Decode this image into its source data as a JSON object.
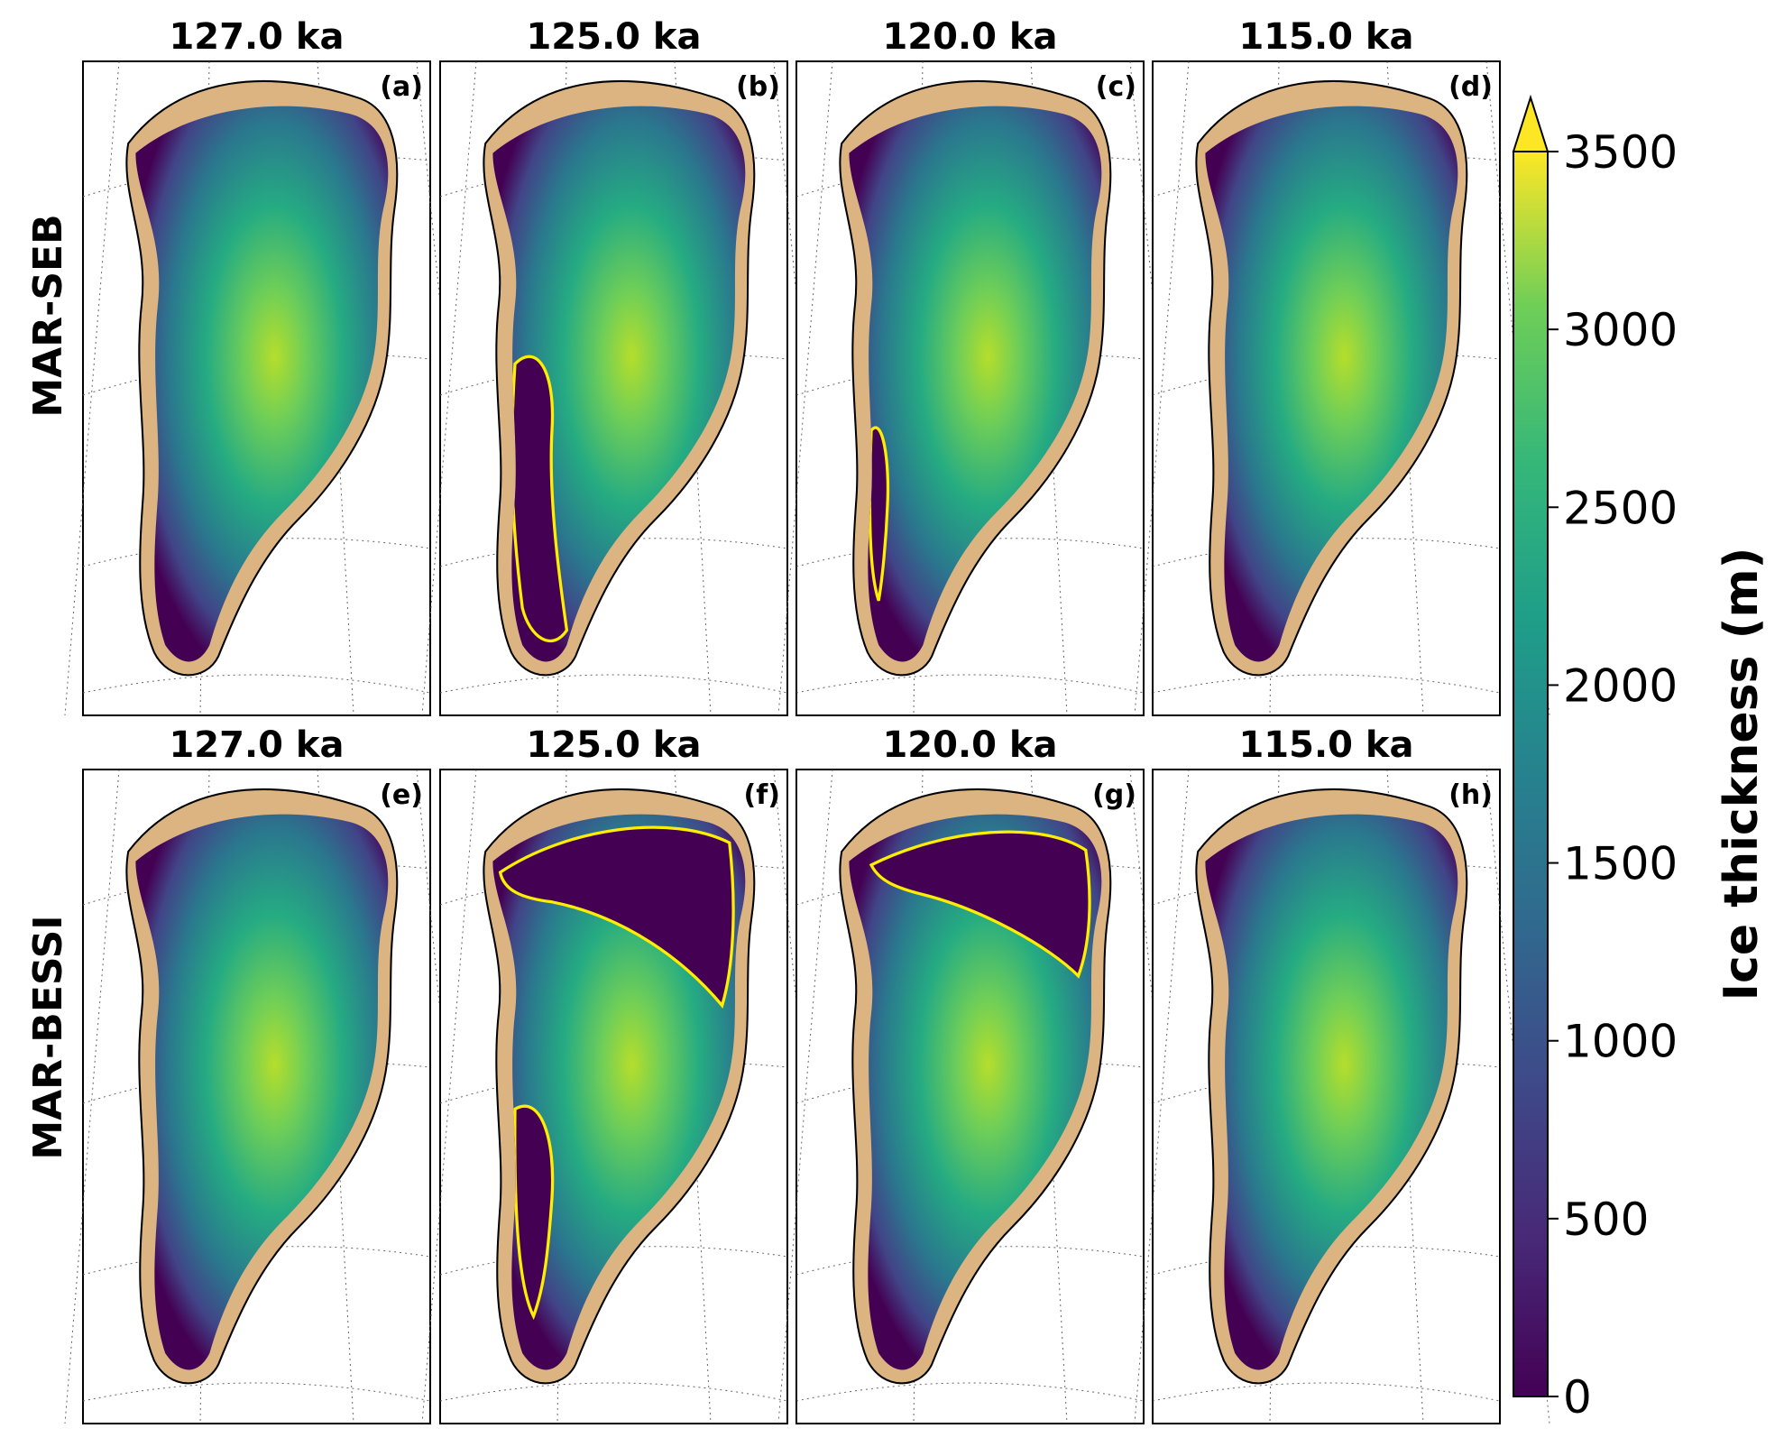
{
  "row_labels": [
    "MAR-SEB",
    "MAR-BESSI"
  ],
  "panels": [
    {
      "title": "127.0 ka",
      "letter": "(a)",
      "ice_free_overlay": "none"
    },
    {
      "title": "125.0 ka",
      "letter": "(b)",
      "ice_free_overlay": "southwest"
    },
    {
      "title": "120.0 ka",
      "letter": "(c)",
      "ice_free_overlay": "southwest-thin"
    },
    {
      "title": "115.0 ka",
      "letter": "(d)",
      "ice_free_overlay": "none"
    },
    {
      "title": "127.0 ka",
      "letter": "(e)",
      "ice_free_overlay": "none"
    },
    {
      "title": "125.0 ka",
      "letter": "(f)",
      "ice_free_overlay": "north-and-southwest"
    },
    {
      "title": "120.0 ka",
      "letter": "(g)",
      "ice_free_overlay": "northeast"
    },
    {
      "title": "115.0 ka",
      "letter": "(h)",
      "ice_free_overlay": "none"
    }
  ],
  "colorbar": {
    "title": "Ice thickness (m)",
    "ticks": [
      "0",
      "500",
      "1000",
      "1500",
      "2000",
      "2500",
      "3000",
      "3500"
    ],
    "min": 0,
    "max": 3500,
    "extend": "max",
    "levels": [
      "#440154",
      "#48186a",
      "#472d7b",
      "#424086",
      "#3b528b",
      "#33638d",
      "#2c728e",
      "#26828e",
      "#21918c",
      "#1fa088",
      "#28ae80",
      "#3fbc73",
      "#5ec962",
      "#84d44b",
      "#addc30",
      "#d8e219",
      "#fde725"
    ]
  },
  "colors": {
    "land": "#dcb482",
    "outline": "#000000",
    "ice_free_contour": "#ffee00",
    "ice_low": "#440154",
    "ice_high": "#fde725"
  }
}
